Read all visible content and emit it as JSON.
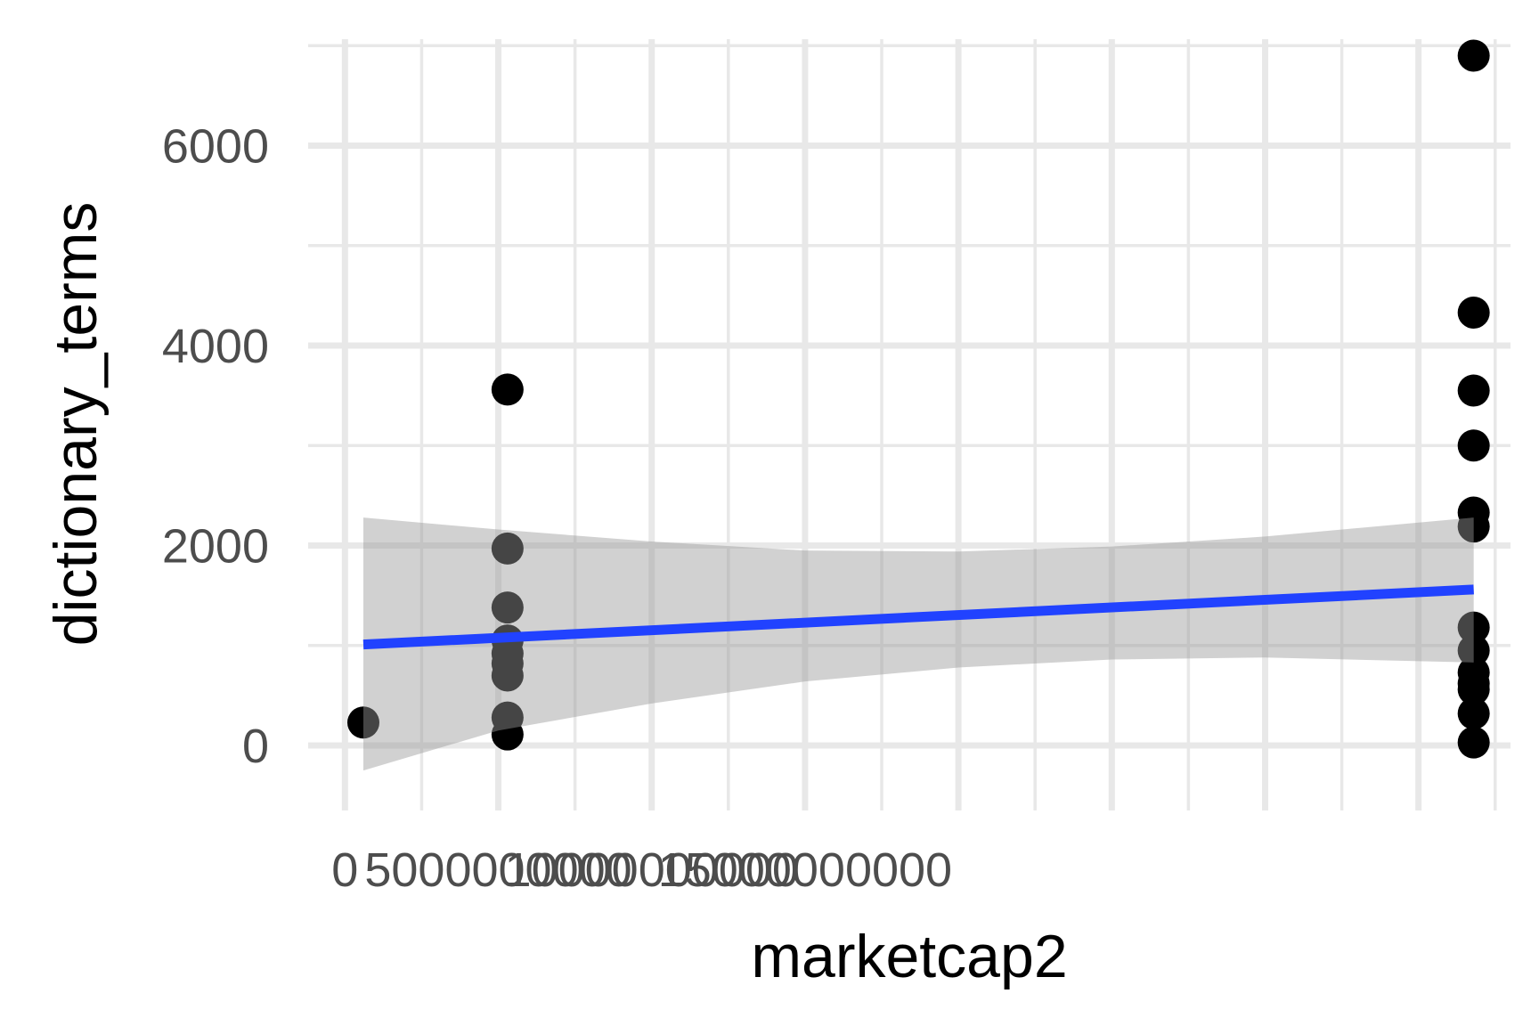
{
  "chart_data": {
    "type": "scatter",
    "title": "",
    "xlabel": "marketcap2",
    "ylabel": "dictionary_terms",
    "xlim": [
      -1200000000,
      38000000000
    ],
    "ylim": [
      -650,
      7100
    ],
    "x_ticks": [
      0,
      5000000000,
      10000000000,
      15000000000
    ],
    "x_tick_labels": [
      "0",
      "5000000000",
      "10000000000",
      "15000000000"
    ],
    "x_tick_labels_right": "",
    "x_tick_labels_visible": [
      "0",
      "5000000000",
      "10000000000",
      "15000000000"
    ],
    "y_ticks": [
      0,
      2000,
      4000,
      6000
    ],
    "y_tick_labels": [
      "0",
      "2000",
      "4000",
      "6000"
    ],
    "grid": true,
    "legend": "none",
    "points": [
      {
        "x": 600000000,
        "y": 230
      },
      {
        "x": 5300000000,
        "y": 3560
      },
      {
        "x": 5300000000,
        "y": 1970
      },
      {
        "x": 5300000000,
        "y": 1380
      },
      {
        "x": 5300000000,
        "y": 1050
      },
      {
        "x": 5300000000,
        "y": 920
      },
      {
        "x": 5300000000,
        "y": 820
      },
      {
        "x": 5300000000,
        "y": 700
      },
      {
        "x": 5300000000,
        "y": 280
      },
      {
        "x": 5300000000,
        "y": 110
      },
      {
        "x": 36800000000,
        "y": 6900
      },
      {
        "x": 36800000000,
        "y": 4330
      },
      {
        "x": 36800000000,
        "y": 3550
      },
      {
        "x": 36800000000,
        "y": 3000
      },
      {
        "x": 36800000000,
        "y": 2330
      },
      {
        "x": 36800000000,
        "y": 2190
      },
      {
        "x": 36800000000,
        "y": 1180
      },
      {
        "x": 36800000000,
        "y": 950
      },
      {
        "x": 36800000000,
        "y": 730
      },
      {
        "x": 36800000000,
        "y": 620
      },
      {
        "x": 36800000000,
        "y": 560
      },
      {
        "x": 36800000000,
        "y": 320
      },
      {
        "x": 36800000000,
        "y": 30
      }
    ],
    "smooth": {
      "method": "lm",
      "x": [
        600000000,
        36800000000
      ],
      "fit": [
        1010,
        1560
      ],
      "band_x": [
        600000000,
        5000000000,
        10000000000,
        15000000000,
        20000000000,
        25000000000,
        30000000000,
        36800000000
      ],
      "band_upper": [
        2280,
        2160,
        2040,
        1950,
        1940,
        1990,
        2090,
        2280
      ],
      "band_lower": [
        -250,
        150,
        420,
        640,
        780,
        860,
        880,
        830
      ]
    },
    "colors": {
      "points": "#000000",
      "line": "#2142ff",
      "band": "#999999",
      "grid": "#e8e8e8",
      "background": "#ffffff"
    }
  }
}
